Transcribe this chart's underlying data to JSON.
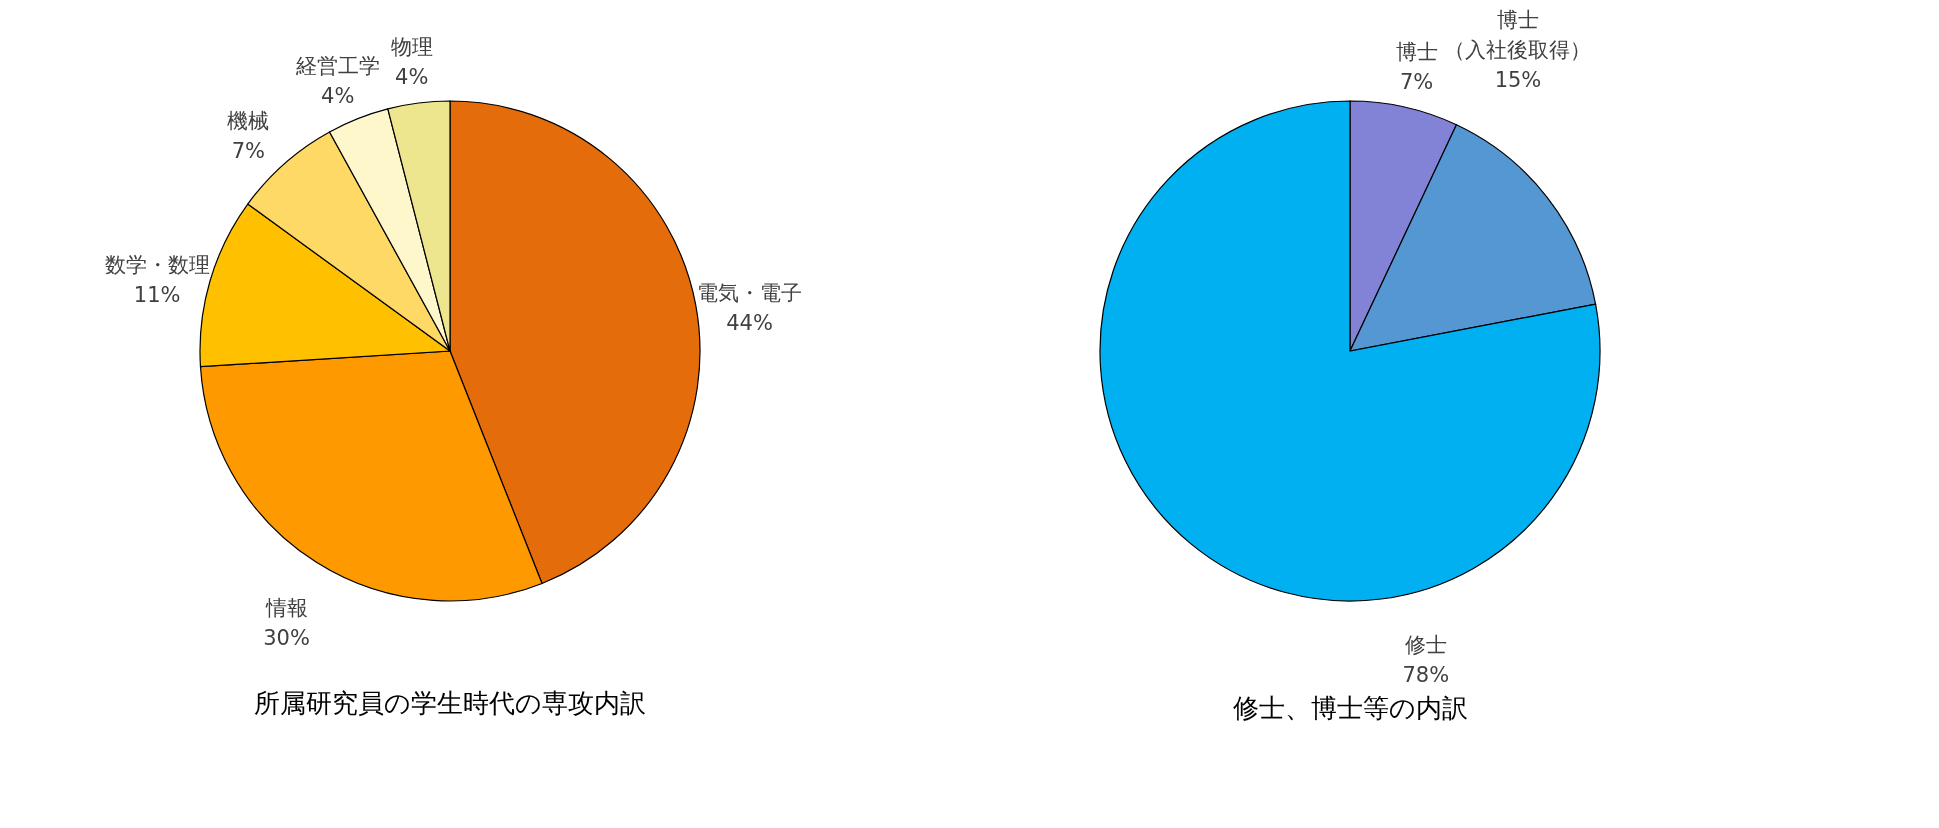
{
  "chart_data": [
    {
      "type": "pie",
      "title": "所属研究員の学生時代の専攻内訳",
      "categories": [
        "電気・電子",
        "情報",
        "数学・数理",
        "機械",
        "経営工学",
        "物理"
      ],
      "values": [
        44,
        30,
        11,
        7,
        4,
        4
      ],
      "value_labels": [
        "44%",
        "30%",
        "11%",
        "7%",
        "4%",
        "4%"
      ],
      "colors": [
        "#e46c0a",
        "#ff9900",
        "#ffc000",
        "#ffd966",
        "#fff7cc",
        "#eee68f"
      ]
    },
    {
      "type": "pie",
      "title": "修士、博士等の内訳",
      "categories": [
        "博士",
        "博士（入社後取得）",
        "修士"
      ],
      "values": [
        7,
        15,
        78
      ],
      "value_labels": [
        "7%",
        "15%",
        "78%"
      ],
      "colors": [
        "#8282d6",
        "#5597d3",
        "#00b0f0"
      ]
    }
  ]
}
